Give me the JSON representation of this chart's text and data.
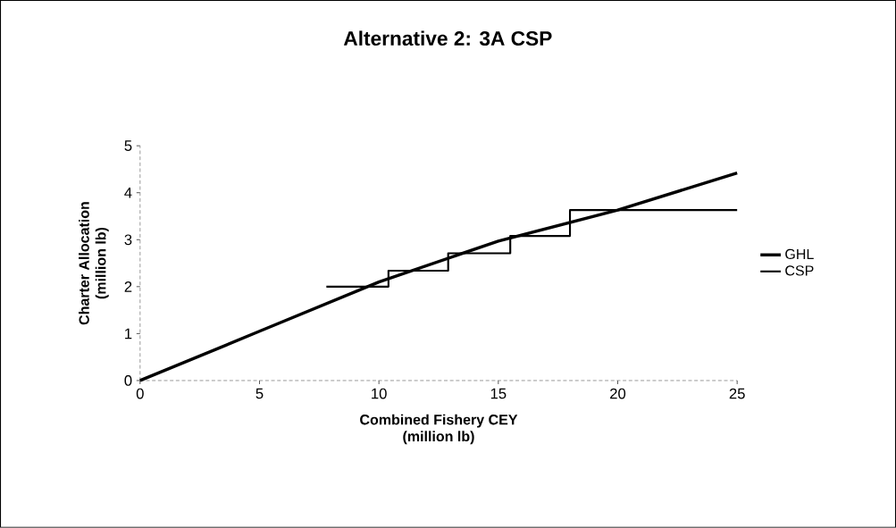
{
  "chart_data": {
    "type": "line",
    "title": "Alternative 2:  3A CSP",
    "xlabel": "Combined Fishery CEY\n(million lb)",
    "ylabel": "Charter Allocation\n(million lb)",
    "series": [
      {
        "name": "GHL",
        "color": "#000000",
        "x": [
          0,
          5,
          10,
          15,
          20,
          25
        ],
        "values": [
          0,
          1.05,
          2.1,
          2.97,
          3.63,
          4.42
        ]
      },
      {
        "name": "CSP",
        "type": "step",
        "color": "#000000",
        "x": [
          7.8,
          10.4,
          12.9,
          15.5,
          18.0,
          25
        ],
        "values": [
          2.0,
          2.34,
          2.71,
          3.08,
          3.63,
          3.63
        ]
      }
    ],
    "xlim": [
      0,
      25
    ],
    "ylim": [
      0,
      5
    ],
    "xticks": [
      0,
      5,
      10,
      15,
      20,
      25
    ],
    "yticks": [
      0,
      1,
      2,
      3,
      4,
      5
    ],
    "grid": false,
    "legend": "right"
  }
}
